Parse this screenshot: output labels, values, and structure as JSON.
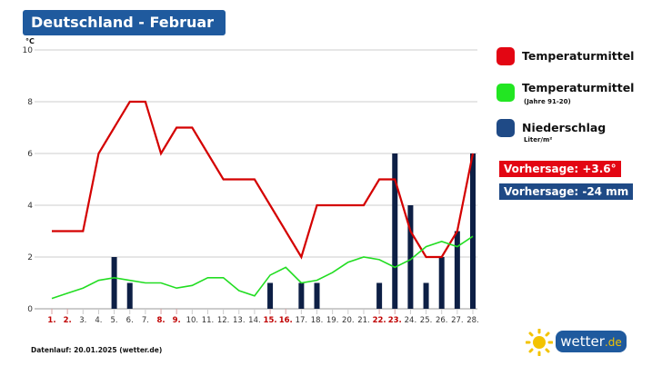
{
  "header": {
    "title": "Deutschland - Februar"
  },
  "legend": {
    "items": [
      {
        "label": "Temperaturmittel",
        "sublabel": "",
        "color": "#e30613"
      },
      {
        "label": "Temperaturmittel",
        "sublabel": "(Jahre 91-20)",
        "color": "#22e622"
      },
      {
        "label": "Niederschlag",
        "sublabel": "Liter/m²",
        "color": "#1f4a86"
      }
    ],
    "forecast_temp": "Vorhersage: +3.6°",
    "forecast_rain": "Vorhersage: -24 mm",
    "forecast_temp_color": "#e30613",
    "forecast_rain_color": "#1f4a86"
  },
  "footer": {
    "text": "Datenlauf: 20.01.2025 (wetter.de)"
  },
  "logo": {
    "text": "wetter",
    "suffix": ".de"
  },
  "chart_data": {
    "type": "line+bar",
    "ylabel": "°C",
    "ylim": [
      0,
      10
    ],
    "yticks": [
      "0",
      "2",
      "4",
      "6",
      "8",
      "10"
    ],
    "grid": true,
    "legend_position": "right",
    "categories": [
      "1.",
      "2.",
      "3.",
      "4.",
      "5.",
      "6.",
      "7.",
      "8.",
      "9.",
      "10.",
      "11.",
      "12.",
      "13.",
      "14.",
      "15.",
      "16.",
      "17.",
      "18.",
      "19.",
      "20.",
      "21.",
      "22.",
      "23.",
      "24.",
      "25.",
      "26.",
      "27.",
      "28."
    ],
    "highlight_categories": [
      "1.",
      "2.",
      "8.",
      "9.",
      "15.",
      "16.",
      "22.",
      "23."
    ],
    "series": [
      {
        "name": "Temperaturmittel",
        "type": "line",
        "color": "#d40000",
        "values": [
          3,
          3,
          3,
          6,
          7,
          8,
          8,
          6,
          7,
          7,
          6,
          5,
          5,
          5,
          4,
          3,
          2,
          4,
          4,
          4,
          4,
          5,
          5,
          3,
          2,
          2,
          3,
          6
        ]
      },
      {
        "name": "Temperaturmittel (Jahre 91-20)",
        "type": "line",
        "color": "#22dd22",
        "values": [
          0.4,
          0.6,
          0.8,
          1.1,
          1.2,
          1.1,
          1.0,
          1.0,
          0.8,
          0.9,
          1.2,
          1.2,
          0.7,
          0.5,
          1.3,
          1.6,
          1.0,
          1.1,
          1.4,
          1.8,
          2.0,
          1.9,
          1.6,
          1.9,
          2.4,
          2.6,
          2.4,
          2.8
        ]
      },
      {
        "name": "Niederschlag",
        "type": "bar",
        "color": "#0d1f45",
        "values": [
          0,
          0,
          0,
          0,
          2,
          1,
          0,
          0,
          0,
          0,
          0,
          0,
          0,
          0,
          1,
          0,
          1,
          1,
          0,
          0,
          0,
          1,
          6,
          4,
          1,
          2,
          3,
          6
        ]
      }
    ]
  }
}
